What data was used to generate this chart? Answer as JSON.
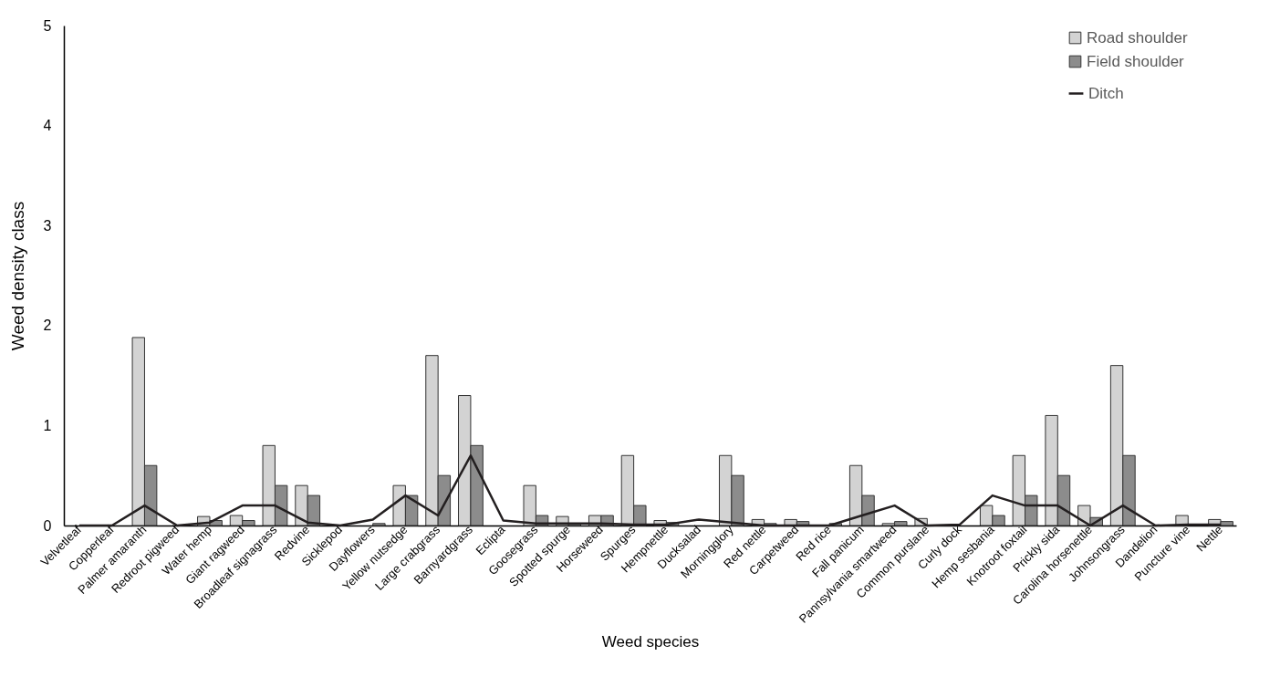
{
  "chart_data": {
    "type": "bar",
    "xlabel": "Weed species",
    "ylabel": "Weed density class",
    "categories": [
      "Velvetleaf",
      "Copperleaf",
      "Palmer amaranth",
      "Redroot pigweed",
      "Water hemp",
      "Giant ragweed",
      "Broadleaf signagrass",
      "Redvine",
      "Sicklepod",
      "Dayflowers",
      "Yellow nutsedge",
      "Large crabgrass",
      "Barnyardgrass",
      "Eclipta",
      "Goosegrass",
      "Spotted spurge",
      "Horseweed",
      "Spurges",
      "Hempnettle",
      "Ducksalad",
      "Morningglory",
      "Red nettle",
      "Carpetweed",
      "Red rice",
      "Fall panicum",
      "Pannsylvania smartweed",
      "Common purslane",
      "Curly dock",
      "Hemp sesbania",
      "Knotroot foxtail",
      "Prickly sida",
      "Carolina horsenettle",
      "Johnsongrass",
      "Dandelion",
      "Puncture vine",
      "Nettle"
    ],
    "series": [
      {
        "name": "Road shoulder",
        "color": "#d3d3d3",
        "values": [
          0,
          0,
          1.88,
          0,
          0.09,
          0.1,
          0.8,
          0.4,
          0,
          0,
          0.4,
          1.7,
          1.3,
          0,
          0.4,
          0.09,
          0.1,
          0.7,
          0.05,
          0,
          0.7,
          0.06,
          0.06,
          0,
          0.6,
          0.02,
          0.07,
          0,
          0.2,
          0.7,
          1.1,
          0.2,
          1.6,
          0,
          0.1,
          0.06
        ]
      },
      {
        "name": "Field shoulder",
        "color": "#8c8c8c",
        "values": [
          0,
          0,
          0.6,
          0,
          0.05,
          0.05,
          0.4,
          0.3,
          0,
          0.02,
          0.3,
          0.5,
          0.8,
          0,
          0.1,
          0.02,
          0.1,
          0.2,
          0.03,
          0,
          0.5,
          0.02,
          0.04,
          0.02,
          0.3,
          0.04,
          null,
          0,
          0.1,
          0.3,
          0.5,
          0.08,
          0.7,
          0,
          null,
          0.04
        ]
      },
      {
        "name": "Ditch",
        "type": "line",
        "color": "#231f20",
        "values": [
          0,
          0,
          0.2,
          0,
          0.03,
          0.2,
          0.2,
          0.03,
          0,
          0.06,
          0.3,
          0.1,
          0.7,
          0.05,
          0.02,
          0.02,
          0.02,
          0.01,
          0.01,
          0.06,
          0.03,
          0,
          0,
          0,
          0.1,
          0.2,
          0,
          0.01,
          0.3,
          0.2,
          0.2,
          0,
          0.2,
          0,
          0.01,
          0.01
        ]
      }
    ],
    "ylim": [
      0,
      5
    ],
    "yticks": [
      0,
      1,
      2,
      3,
      4,
      5
    ],
    "legend": "top right"
  }
}
